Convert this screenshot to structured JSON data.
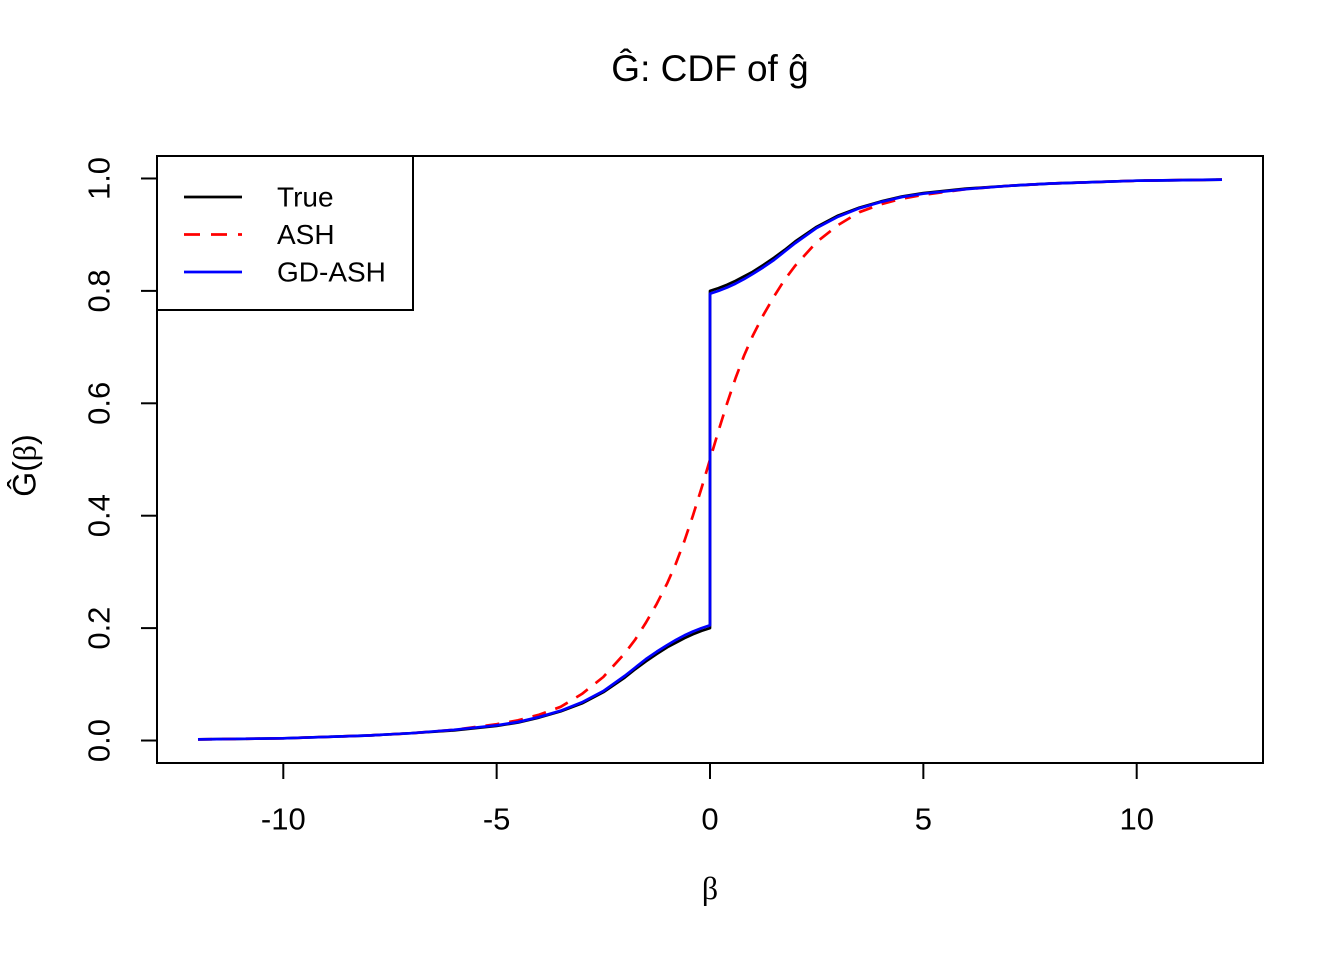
{
  "chart_data": {
    "type": "line",
    "title": "Ĝ: CDF of ĝ",
    "xlabel": "β",
    "ylabel": "Ĝ(β)",
    "xlim": [
      -12.96,
      12.96
    ],
    "ylim": [
      -0.04,
      1.04
    ],
    "grid": false,
    "xticks": {
      "values": [
        -10,
        -5,
        0,
        5,
        10
      ],
      "labels": [
        "-10",
        "-5",
        "0",
        "5",
        "10"
      ]
    },
    "yticks": {
      "values": [
        0.0,
        0.2,
        0.4,
        0.6,
        0.8,
        1.0
      ],
      "labels": [
        "0.0",
        "0.2",
        "0.4",
        "0.6",
        "0.8",
        "1.0"
      ]
    },
    "legend": {
      "position": "topleft",
      "entries": [
        "True",
        "ASH",
        "GD-ASH"
      ]
    },
    "colors": {
      "true": "#000000",
      "ash": "#FF0000",
      "gd_ash": "#0000FF"
    },
    "series": [
      {
        "name": "True",
        "color": "#000000",
        "line_style": "solid",
        "x": [
          -12,
          -10,
          -8,
          -7,
          -6,
          -5,
          -4.5,
          -4,
          -3.5,
          -3,
          -2.5,
          -2,
          -1.75,
          -1.5,
          -1.25,
          -1,
          -0.8,
          -0.6,
          -0.4,
          -0.2,
          0,
          0,
          0.2,
          0.4,
          0.6,
          0.8,
          1,
          1.25,
          1.5,
          1.75,
          2,
          2.5,
          3,
          3.5,
          4,
          4.5,
          5,
          6,
          7,
          8,
          10,
          12
        ],
        "y": [
          0.002,
          0.004,
          0.009,
          0.013,
          0.018,
          0.026,
          0.032,
          0.041,
          0.052,
          0.066,
          0.086,
          0.112,
          0.127,
          0.141,
          0.154,
          0.166,
          0.174,
          0.182,
          0.189,
          0.195,
          0.2,
          0.8,
          0.805,
          0.811,
          0.818,
          0.826,
          0.834,
          0.846,
          0.859,
          0.873,
          0.888,
          0.914,
          0.934,
          0.948,
          0.959,
          0.968,
          0.974,
          0.982,
          0.987,
          0.991,
          0.996,
          0.998
        ]
      },
      {
        "name": "ASH",
        "color": "#FF0000",
        "line_style": "dashed",
        "x": [
          -12,
          -10,
          -8,
          -7,
          -6,
          -5,
          -4.5,
          -4,
          -3.5,
          -3,
          -2.5,
          -2,
          -1.75,
          -1.5,
          -1.25,
          -1,
          -0.8,
          -0.6,
          -0.4,
          -0.2,
          0,
          0.2,
          0.4,
          0.6,
          0.8,
          1,
          1.25,
          1.5,
          1.75,
          2,
          2.5,
          3,
          3.5,
          4,
          4.5,
          5,
          6,
          7,
          8,
          10,
          12
        ],
        "y": [
          0.002,
          0.004,
          0.009,
          0.013,
          0.019,
          0.029,
          0.036,
          0.046,
          0.06,
          0.083,
          0.113,
          0.155,
          0.18,
          0.21,
          0.243,
          0.28,
          0.315,
          0.355,
          0.4,
          0.449,
          0.5,
          0.551,
          0.6,
          0.645,
          0.685,
          0.72,
          0.757,
          0.79,
          0.82,
          0.845,
          0.887,
          0.917,
          0.94,
          0.954,
          0.964,
          0.971,
          0.981,
          0.987,
          0.991,
          0.996,
          0.998
        ]
      },
      {
        "name": "GD-ASH",
        "color": "#0000FF",
        "line_style": "solid",
        "x": [
          -12,
          -10,
          -8,
          -7,
          -6,
          -5,
          -4.5,
          -4,
          -3.5,
          -3,
          -2.5,
          -2,
          -1.75,
          -1.5,
          -1.25,
          -1,
          -0.8,
          -0.6,
          -0.4,
          -0.2,
          0,
          0,
          0.2,
          0.4,
          0.6,
          0.8,
          1,
          1.25,
          1.5,
          1.75,
          2,
          2.5,
          3,
          3.5,
          4,
          4.5,
          5,
          6,
          7,
          8,
          10,
          12
        ],
        "y": [
          0.002,
          0.004,
          0.009,
          0.013,
          0.019,
          0.027,
          0.033,
          0.042,
          0.053,
          0.068,
          0.088,
          0.115,
          0.13,
          0.145,
          0.158,
          0.17,
          0.179,
          0.187,
          0.194,
          0.2,
          0.205,
          0.795,
          0.8,
          0.806,
          0.813,
          0.821,
          0.83,
          0.842,
          0.855,
          0.87,
          0.885,
          0.912,
          0.932,
          0.947,
          0.958,
          0.967,
          0.973,
          0.981,
          0.987,
          0.991,
          0.996,
          0.998
        ]
      }
    ]
  }
}
